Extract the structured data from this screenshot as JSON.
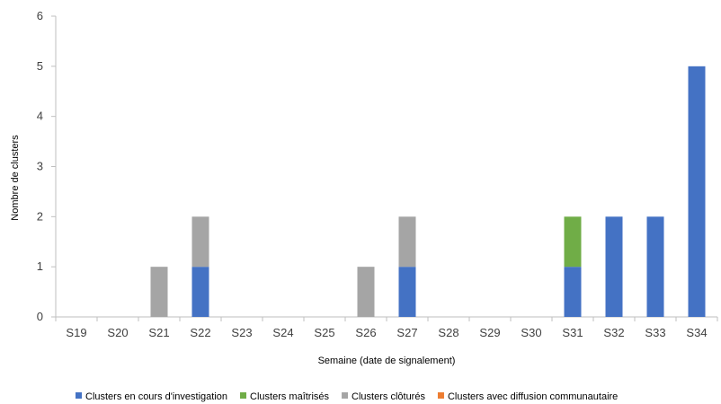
{
  "chart_data": {
    "type": "bar",
    "stacked": true,
    "title": "",
    "xlabel": "Semaine (date de signalement)",
    "ylabel": "Nombre de clusters",
    "ylim": [
      0,
      6
    ],
    "y_ticks": [
      0,
      1,
      2,
      3,
      4,
      5,
      6
    ],
    "grid": false,
    "legend_position": "bottom",
    "categories": [
      "S19",
      "S20",
      "S21",
      "S22",
      "S23",
      "S24",
      "S25",
      "S26",
      "S27",
      "S28",
      "S29",
      "S30",
      "S31",
      "S32",
      "S33",
      "S34"
    ],
    "series": [
      {
        "name": "Clusters en cours d'investigation",
        "color": "#4472C4",
        "values": [
          0,
          0,
          0,
          1,
          0,
          0,
          0,
          0,
          1,
          0,
          0,
          0,
          1,
          2,
          2,
          5
        ]
      },
      {
        "name": "Clusters maîtrisés",
        "color": "#70AD47",
        "values": [
          0,
          0,
          0,
          0,
          0,
          0,
          0,
          0,
          0,
          0,
          0,
          0,
          1,
          0,
          0,
          0
        ]
      },
      {
        "name": "Clusters clôturés",
        "color": "#A5A5A5",
        "values": [
          0,
          0,
          1,
          1,
          0,
          0,
          0,
          1,
          1,
          0,
          0,
          0,
          0,
          0,
          0,
          0
        ]
      },
      {
        "name": "Clusters avec diffusion communautaire",
        "color": "#ED7D31",
        "values": [
          0,
          0,
          0,
          0,
          0,
          0,
          0,
          0,
          0,
          0,
          0,
          0,
          0,
          0,
          0,
          0
        ]
      }
    ]
  }
}
